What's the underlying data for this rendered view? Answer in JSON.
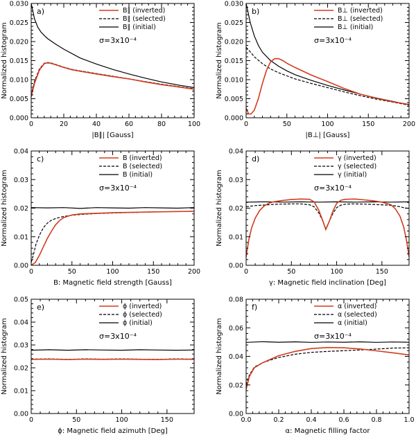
{
  "figure": {
    "ylabel": "Normalized histogram",
    "colors": {
      "inverted": "#d23b1e",
      "selected": "#000000",
      "initial": "#000000"
    },
    "line_styles": {
      "inverted": "solid",
      "selected": "dashed",
      "initial": "solid"
    }
  },
  "chart_data": [
    {
      "type": "line",
      "panel_label": "a)",
      "xlabel": "|B∥| [Gauss]",
      "ylabel": "Normalized histogram",
      "xlim": [
        0,
        100
      ],
      "ylim": [
        0,
        0.03
      ],
      "xticks": [
        0,
        20,
        40,
        60,
        80,
        100
      ],
      "xtick_labels": [
        "0",
        "20",
        "40",
        "60",
        "80",
        "100"
      ],
      "yticks": [
        0,
        0.005,
        0.01,
        0.015,
        0.02,
        0.025,
        0.03
      ],
      "ytick_labels": [
        "0.000",
        "0.005",
        "0.010",
        "0.015",
        "0.020",
        "0.025",
        "0.030"
      ],
      "sigma_label": "σ=3x10⁻⁴",
      "legend": [
        "B∥ (inverted)",
        "B∥ (selected)",
        "B∥ (initial)"
      ],
      "series": [
        {
          "name": "inverted",
          "x": [
            0,
            2,
            5,
            8,
            10,
            12,
            15,
            20,
            25,
            30,
            40,
            50,
            60,
            70,
            80,
            90,
            100
          ],
          "values": [
            0.0055,
            0.009,
            0.0125,
            0.0142,
            0.0144,
            0.0143,
            0.0139,
            0.0132,
            0.0126,
            0.0122,
            0.0115,
            0.0108,
            0.0102,
            0.0094,
            0.0087,
            0.0081,
            0.0075
          ]
        },
        {
          "name": "selected",
          "x": [
            0,
            2,
            5,
            8,
            10,
            12,
            15,
            20,
            25,
            30,
            40,
            50,
            60,
            70,
            80,
            90,
            100
          ],
          "values": [
            0.006,
            0.0095,
            0.0128,
            0.0143,
            0.0145,
            0.0144,
            0.014,
            0.0133,
            0.0127,
            0.0123,
            0.0116,
            0.0109,
            0.0102,
            0.0095,
            0.0088,
            0.0082,
            0.0076
          ]
        },
        {
          "name": "initial",
          "x": [
            0,
            1,
            2,
            4,
            6,
            8,
            10,
            15,
            20,
            30,
            40,
            50,
            60,
            70,
            80,
            90,
            100
          ],
          "values": [
            0.03,
            0.028,
            0.026,
            0.0238,
            0.0225,
            0.0216,
            0.0208,
            0.0193,
            0.018,
            0.0157,
            0.0141,
            0.0127,
            0.0115,
            0.0104,
            0.0094,
            0.0086,
            0.0079
          ]
        }
      ]
    },
    {
      "type": "line",
      "panel_label": "b)",
      "xlabel": "|B⊥| [Gauss]",
      "ylabel": "Normalized histogram",
      "xlim": [
        0,
        200
      ],
      "ylim": [
        0,
        0.03
      ],
      "xticks": [
        0,
        50,
        100,
        150,
        200
      ],
      "xtick_labels": [
        "0",
        "50",
        "100",
        "150",
        "200"
      ],
      "yticks": [
        0,
        0.005,
        0.01,
        0.015,
        0.02,
        0.025,
        0.03
      ],
      "ytick_labels": [
        "0.000",
        "0.005",
        "0.010",
        "0.015",
        "0.020",
        "0.025",
        "0.030"
      ],
      "sigma_label": "σ=3x10⁻⁴",
      "legend": [
        "B⊥ (inverted)",
        "B⊥ (selected)",
        "B⊥ (initial)"
      ],
      "series": [
        {
          "name": "inverted",
          "x": [
            0,
            3,
            6,
            10,
            15,
            20,
            25,
            30,
            35,
            40,
            45,
            50,
            60,
            70,
            80,
            100,
            120,
            140,
            160,
            180,
            200
          ],
          "values": [
            0.0025,
            0.001,
            0.001,
            0.002,
            0.005,
            0.009,
            0.0125,
            0.0147,
            0.0155,
            0.0155,
            0.015,
            0.0143,
            0.0132,
            0.0122,
            0.0112,
            0.0095,
            0.0077,
            0.0062,
            0.0051,
            0.0042,
            0.0035
          ]
        },
        {
          "name": "selected",
          "x": [
            0,
            5,
            10,
            20,
            30,
            40,
            50,
            60,
            80,
            100,
            120,
            140,
            160,
            180,
            200
          ],
          "values": [
            0.0185,
            0.0173,
            0.016,
            0.0142,
            0.0128,
            0.0118,
            0.011,
            0.0102,
            0.009,
            0.0079,
            0.0068,
            0.0058,
            0.0049,
            0.0041,
            0.0033
          ]
        },
        {
          "name": "initial",
          "x": [
            0,
            2,
            5,
            10,
            15,
            20,
            30,
            40,
            50,
            60,
            80,
            100,
            120,
            140,
            160,
            180,
            200
          ],
          "values": [
            0.03,
            0.028,
            0.025,
            0.0215,
            0.019,
            0.0172,
            0.015,
            0.0135,
            0.0123,
            0.0113,
            0.0098,
            0.0085,
            0.0073,
            0.0062,
            0.0052,
            0.0043,
            0.0034
          ]
        }
      ]
    },
    {
      "type": "line",
      "panel_label": "c)",
      "xlabel": "B: Magnetic field strength [Gauss]",
      "ylabel": "Normalized histogram",
      "xlim": [
        0,
        200
      ],
      "ylim": [
        0,
        0.04
      ],
      "xticks": [
        0,
        50,
        100,
        150,
        200
      ],
      "xtick_labels": [
        "0",
        "50",
        "100",
        "150",
        "200"
      ],
      "yticks": [
        0,
        0.01,
        0.02,
        0.03,
        0.04
      ],
      "ytick_labels": [
        "0.00",
        "0.01",
        "0.02",
        "0.03",
        "0.04"
      ],
      "sigma_label": "σ=3x10⁻⁴",
      "legend": [
        "B (inverted)",
        "B (selected)",
        "B (initial)"
      ],
      "series": [
        {
          "name": "inverted",
          "x": [
            0,
            5,
            10,
            15,
            20,
            25,
            30,
            35,
            40,
            45,
            50,
            60,
            80,
            100,
            150,
            200
          ],
          "values": [
            0.0,
            0.001,
            0.0035,
            0.0065,
            0.0095,
            0.012,
            0.0142,
            0.0157,
            0.0167,
            0.0172,
            0.0176,
            0.018,
            0.0182,
            0.0184,
            0.0187,
            0.0189
          ]
        },
        {
          "name": "selected",
          "x": [
            0,
            3,
            6,
            10,
            15,
            20,
            25,
            30,
            40,
            50,
            60,
            80,
            100,
            150,
            200
          ],
          "values": [
            0.001,
            0.004,
            0.0075,
            0.0105,
            0.0132,
            0.0148,
            0.0158,
            0.0164,
            0.0171,
            0.0175,
            0.0178,
            0.0181,
            0.0183,
            0.0187,
            0.0189
          ]
        },
        {
          "name": "initial",
          "x": [
            0,
            20,
            40,
            60,
            80,
            100,
            120,
            140,
            160,
            180,
            200
          ],
          "values": [
            0.0202,
            0.0201,
            0.0202,
            0.0199,
            0.0202,
            0.0201,
            0.02,
            0.0202,
            0.0201,
            0.02,
            0.0202
          ]
        }
      ]
    },
    {
      "type": "line",
      "panel_label": "d)",
      "xlabel": "γ: Magnetic field inclination [Deg]",
      "ylabel": "Normalized histogram",
      "xlim": [
        0,
        180
      ],
      "ylim": [
        0,
        0.04
      ],
      "xticks": [
        0,
        50,
        100,
        150
      ],
      "xtick_labels": [
        "0",
        "50",
        "100",
        "150"
      ],
      "yticks": [
        0,
        0.01,
        0.02,
        0.03,
        0.04
      ],
      "ytick_labels": [
        "0.00",
        "0.01",
        "0.02",
        "0.03",
        "0.04"
      ],
      "sigma_label": "σ=3x10⁻⁴",
      "legend": [
        "γ (inverted)",
        "γ (selected)",
        "γ (initial)"
      ],
      "series": [
        {
          "name": "inverted",
          "x": [
            0,
            3,
            6,
            10,
            15,
            20,
            25,
            30,
            40,
            50,
            60,
            70,
            75,
            80,
            84,
            88,
            92,
            96,
            100,
            105,
            110,
            120,
            130,
            140,
            150,
            160,
            165,
            170,
            174,
            177,
            180
          ],
          "values": [
            0.003,
            0.009,
            0.013,
            0.0165,
            0.0192,
            0.0208,
            0.0217,
            0.0222,
            0.0227,
            0.023,
            0.0232,
            0.0231,
            0.0222,
            0.0195,
            0.0162,
            0.0125,
            0.0155,
            0.019,
            0.0217,
            0.0228,
            0.0231,
            0.0232,
            0.0229,
            0.0226,
            0.0221,
            0.0212,
            0.0197,
            0.0172,
            0.0135,
            0.009,
            0.003
          ]
        },
        {
          "name": "selected",
          "x": [
            0,
            5,
            10,
            20,
            30,
            40,
            50,
            60,
            70,
            75,
            80,
            84,
            88,
            92,
            96,
            100,
            105,
            110,
            120,
            140,
            160,
            170,
            175,
            180
          ],
          "values": [
            0.0205,
            0.0207,
            0.0209,
            0.0211,
            0.0213,
            0.0214,
            0.0215,
            0.0215,
            0.0212,
            0.0205,
            0.0185,
            0.016,
            0.0128,
            0.0155,
            0.0182,
            0.0202,
            0.0211,
            0.0214,
            0.0215,
            0.0213,
            0.021,
            0.0205,
            0.0201,
            0.0199
          ]
        },
        {
          "name": "initial",
          "x": [
            0,
            20,
            40,
            60,
            80,
            100,
            120,
            140,
            160,
            180
          ],
          "values": [
            0.0221,
            0.0222,
            0.0221,
            0.0222,
            0.0221,
            0.0222,
            0.0221,
            0.0222,
            0.0221,
            0.0222
          ]
        }
      ]
    },
    {
      "type": "line",
      "panel_label": "e)",
      "xlabel": "ϕ: Magnetic field azimuth [Deg]",
      "ylabel": "Normalized histogram",
      "xlim": [
        0,
        180
      ],
      "ylim": [
        0,
        0.05
      ],
      "xticks": [
        0,
        50,
        100,
        150
      ],
      "xtick_labels": [
        "0",
        "50",
        "100",
        "150"
      ],
      "yticks": [
        0,
        0.01,
        0.02,
        0.03,
        0.04,
        0.05
      ],
      "ytick_labels": [
        "0.00",
        "0.01",
        "0.02",
        "0.03",
        "0.04",
        "0.05"
      ],
      "sigma_label": "σ=3x10⁻⁴",
      "legend": [
        "ϕ (inverted)",
        "ϕ (selected)",
        "ϕ (initial)"
      ],
      "series": [
        {
          "name": "inverted",
          "x": [
            0,
            20,
            40,
            60,
            80,
            100,
            120,
            140,
            160,
            180
          ],
          "values": [
            0.0237,
            0.0238,
            0.0236,
            0.0238,
            0.0237,
            0.0238,
            0.0237,
            0.0236,
            0.0238,
            0.0237
          ]
        },
        {
          "name": "selected",
          "x": [
            0,
            20,
            40,
            60,
            80,
            100,
            120,
            140,
            160,
            180
          ],
          "values": [
            0.0238,
            0.0239,
            0.0237,
            0.0239,
            0.0238,
            0.0239,
            0.0238,
            0.0237,
            0.0239,
            0.0238
          ]
        },
        {
          "name": "initial",
          "x": [
            0,
            20,
            40,
            60,
            80,
            100,
            120,
            140,
            160,
            180
          ],
          "values": [
            0.0277,
            0.0279,
            0.0277,
            0.0279,
            0.0278,
            0.0277,
            0.0279,
            0.0278,
            0.0277,
            0.0278
          ]
        }
      ]
    },
    {
      "type": "line",
      "panel_label": "f)",
      "xlabel": "α: Magnetic filling factor",
      "ylabel": "Normalized histogram",
      "xlim": [
        0,
        1.0
      ],
      "ylim": [
        0,
        0.08
      ],
      "xticks": [
        0,
        0.2,
        0.4,
        0.6,
        0.8,
        1.0
      ],
      "xtick_labels": [
        "0.0",
        "0.2",
        "0.4",
        "0.6",
        "0.8",
        "1.0"
      ],
      "yticks": [
        0,
        0.02,
        0.04,
        0.06,
        0.08
      ],
      "ytick_labels": [
        "0.00",
        "0.02",
        "0.04",
        "0.06",
        "0.08"
      ],
      "sigma_label": "σ=3x10⁻⁴",
      "legend": [
        "α (inverted)",
        "α (selected)",
        "α (initial)"
      ],
      "series": [
        {
          "name": "inverted",
          "x": [
            0,
            0.02,
            0.05,
            0.1,
            0.15,
            0.2,
            0.3,
            0.4,
            0.5,
            0.6,
            0.7,
            0.8,
            0.9,
            1.0
          ],
          "values": [
            0.017,
            0.026,
            0.032,
            0.0355,
            0.038,
            0.0405,
            0.0435,
            0.0455,
            0.0462,
            0.046,
            0.0452,
            0.0439,
            0.0425,
            0.041
          ]
        },
        {
          "name": "selected",
          "x": [
            0,
            0.02,
            0.05,
            0.1,
            0.15,
            0.2,
            0.3,
            0.4,
            0.5,
            0.6,
            0.7,
            0.8,
            0.9,
            1.0
          ],
          "values": [
            0.02,
            0.027,
            0.0325,
            0.0355,
            0.0375,
            0.0392,
            0.0415,
            0.0428,
            0.0435,
            0.044,
            0.0445,
            0.0451,
            0.0458,
            0.046
          ]
        },
        {
          "name": "initial",
          "x": [
            0,
            0.1,
            0.2,
            0.3,
            0.4,
            0.5,
            0.6,
            0.7,
            0.8,
            0.9,
            1.0
          ],
          "values": [
            0.0498,
            0.0503,
            0.0499,
            0.0502,
            0.0498,
            0.0501,
            0.0499,
            0.0502,
            0.0498,
            0.0501,
            0.0499
          ]
        }
      ]
    }
  ]
}
